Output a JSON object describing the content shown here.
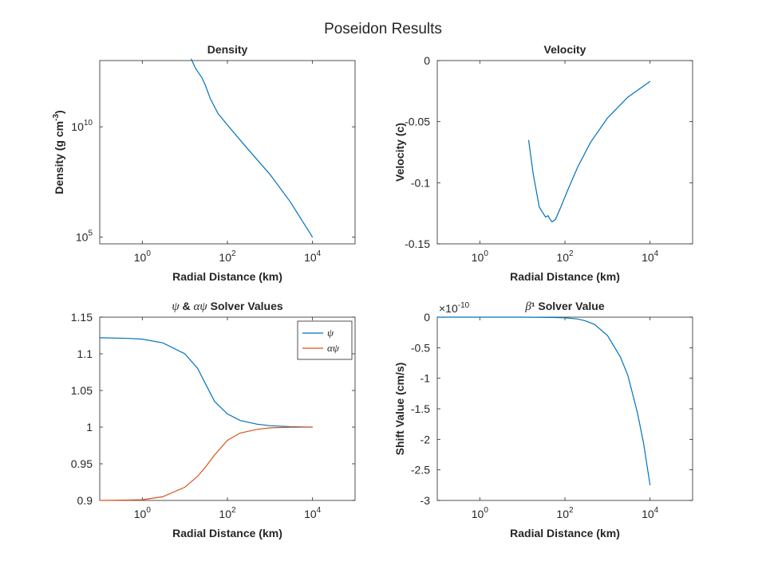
{
  "figure": {
    "title": "Poseidon Results"
  },
  "colors": {
    "series1": "#0072BD",
    "series2": "#D95319",
    "axis": "#262626"
  },
  "chart_data": [
    {
      "id": "density",
      "type": "line",
      "title": "Density",
      "title_parts": [
        {
          "text": "Density",
          "italic": false
        }
      ],
      "xlabel": "Radial Distance (km)",
      "ylabel": "Density (g cm",
      "ylabel_sup": "-3",
      "ylabel_tail": ")",
      "xscale": "log",
      "yscale": "log",
      "xlim": [
        0.1,
        100000
      ],
      "ylim": [
        50000,
        10000000000000
      ],
      "xticks": [
        {
          "value": 1,
          "base": "10",
          "exp": "0"
        },
        {
          "value": 100,
          "base": "10",
          "exp": "2"
        },
        {
          "value": 10000,
          "base": "10",
          "exp": "4"
        }
      ],
      "yticks": [
        {
          "value": 100000,
          "base": "10",
          "exp": "5"
        },
        {
          "value": 10000000000,
          "base": "10",
          "exp": "10"
        }
      ],
      "series": [
        {
          "color": "#0072BD",
          "x": [
            14,
            18,
            25,
            30,
            40,
            60,
            100,
            300,
            1000,
            3000,
            10000
          ],
          "y": [
            12000000000000.0,
            4300000000000.0,
            1700000000000.0,
            800000000000.0,
            180000000000.0,
            40000000000.0,
            12000000000.0,
            1000000000.0,
            70000000.0,
            4000000.0,
            100000.0
          ]
        }
      ]
    },
    {
      "id": "velocity",
      "type": "line",
      "title": "Velocity",
      "title_parts": [
        {
          "text": "Velocity",
          "italic": false
        }
      ],
      "xlabel": "Radial Distance (km)",
      "ylabel": "Velocity (c)",
      "xscale": "log",
      "yscale": "linear",
      "xlim": [
        0.1,
        100000
      ],
      "ylim": [
        -0.15,
        0
      ],
      "xticks": [
        {
          "value": 1,
          "base": "10",
          "exp": "0"
        },
        {
          "value": 100,
          "base": "10",
          "exp": "2"
        },
        {
          "value": 10000,
          "base": "10",
          "exp": "4"
        }
      ],
      "yticks": [
        {
          "value": -0.15,
          "label": "-0.15"
        },
        {
          "value": -0.1,
          "label": "-0.1"
        },
        {
          "value": -0.05,
          "label": "-0.05"
        },
        {
          "value": 0,
          "label": "0"
        }
      ],
      "series": [
        {
          "color": "#0072BD",
          "x": [
            14,
            18,
            25,
            35,
            40,
            45,
            50,
            60,
            80,
            120,
            200,
            400,
            1000,
            3000,
            10000
          ],
          "y": [
            -0.065,
            -0.093,
            -0.12,
            -0.128,
            -0.127,
            -0.13,
            -0.132,
            -0.13,
            -0.12,
            -0.105,
            -0.087,
            -0.067,
            -0.047,
            -0.03,
            -0.017
          ]
        }
      ]
    },
    {
      "id": "solver-psi",
      "type": "line",
      "title": "ψ & αψ Solver Values",
      "title_parts": [
        {
          "text": "ψ",
          "italic": true
        },
        {
          "text": " & ",
          "italic": false
        },
        {
          "text": "αψ",
          "italic": true
        },
        {
          "text": " Solver Values",
          "italic": false
        }
      ],
      "xlabel": "Radial Distance (km)",
      "ylabel": "",
      "xscale": "log",
      "yscale": "linear",
      "xlim": [
        0.1,
        100000
      ],
      "ylim": [
        0.9,
        1.15
      ],
      "xticks": [
        {
          "value": 1,
          "base": "10",
          "exp": "0"
        },
        {
          "value": 100,
          "base": "10",
          "exp": "2"
        },
        {
          "value": 10000,
          "base": "10",
          "exp": "4"
        }
      ],
      "yticks": [
        {
          "value": 0.9,
          "label": "0.9"
        },
        {
          "value": 0.95,
          "label": "0.95"
        },
        {
          "value": 1,
          "label": "1"
        },
        {
          "value": 1.05,
          "label": "1.05"
        },
        {
          "value": 1.1,
          "label": "1.1"
        },
        {
          "value": 1.15,
          "label": "1.15"
        }
      ],
      "legend": {
        "position": "top-right"
      },
      "series": [
        {
          "name": "ψ",
          "color": "#0072BD",
          "x": [
            0.1,
            0.5,
            1,
            3,
            10,
            20,
            30,
            50,
            100,
            200,
            500,
            1000,
            3000,
            10000
          ],
          "y": [
            1.122,
            1.121,
            1.12,
            1.115,
            1.1,
            1.08,
            1.06,
            1.035,
            1.018,
            1.009,
            1.004,
            1.002,
            1.0005,
            1.0
          ]
        },
        {
          "name": "αψ",
          "color": "#D95319",
          "x": [
            0.1,
            0.5,
            1,
            3,
            10,
            20,
            30,
            50,
            100,
            200,
            500,
            1000,
            3000,
            10000
          ],
          "y": [
            0.9,
            0.9005,
            0.901,
            0.905,
            0.918,
            0.933,
            0.945,
            0.962,
            0.982,
            0.992,
            0.997,
            0.999,
            0.9998,
            1.0
          ]
        }
      ]
    },
    {
      "id": "solver-beta",
      "type": "line",
      "title": "β¹ Solver Value",
      "title_parts": [
        {
          "text": "β",
          "italic": true
        },
        {
          "text": "¹",
          "italic": false
        },
        {
          "text": " Solver Value",
          "italic": false
        }
      ],
      "xlabel": "Radial Distance (km)",
      "ylabel": "Shift Value (cm/s)",
      "exponent_label": "×10",
      "exponent_value": "-10",
      "xscale": "log",
      "yscale": "linear",
      "xlim": [
        0.1,
        100000
      ],
      "ylim": [
        -3,
        0
      ],
      "xticks": [
        {
          "value": 1,
          "base": "10",
          "exp": "0"
        },
        {
          "value": 100,
          "base": "10",
          "exp": "2"
        },
        {
          "value": 10000,
          "base": "10",
          "exp": "4"
        }
      ],
      "yticks": [
        {
          "value": -3,
          "label": "-3"
        },
        {
          "value": -2.5,
          "label": "-2.5"
        },
        {
          "value": -2,
          "label": "-2"
        },
        {
          "value": -1.5,
          "label": "-1.5"
        },
        {
          "value": -1,
          "label": "-1"
        },
        {
          "value": -0.5,
          "label": "-0.5"
        },
        {
          "value": 0,
          "label": "0"
        }
      ],
      "series": [
        {
          "color": "#0072BD",
          "x": [
            0.1,
            1,
            10,
            50,
            100,
            200,
            300,
            500,
            1000,
            2000,
            3000,
            5000,
            7000,
            10000
          ],
          "y": [
            0,
            0,
            0,
            -0.005,
            -0.01,
            -0.03,
            -0.06,
            -0.12,
            -0.3,
            -0.65,
            -0.95,
            -1.55,
            -2.05,
            -2.75
          ]
        }
      ]
    }
  ]
}
